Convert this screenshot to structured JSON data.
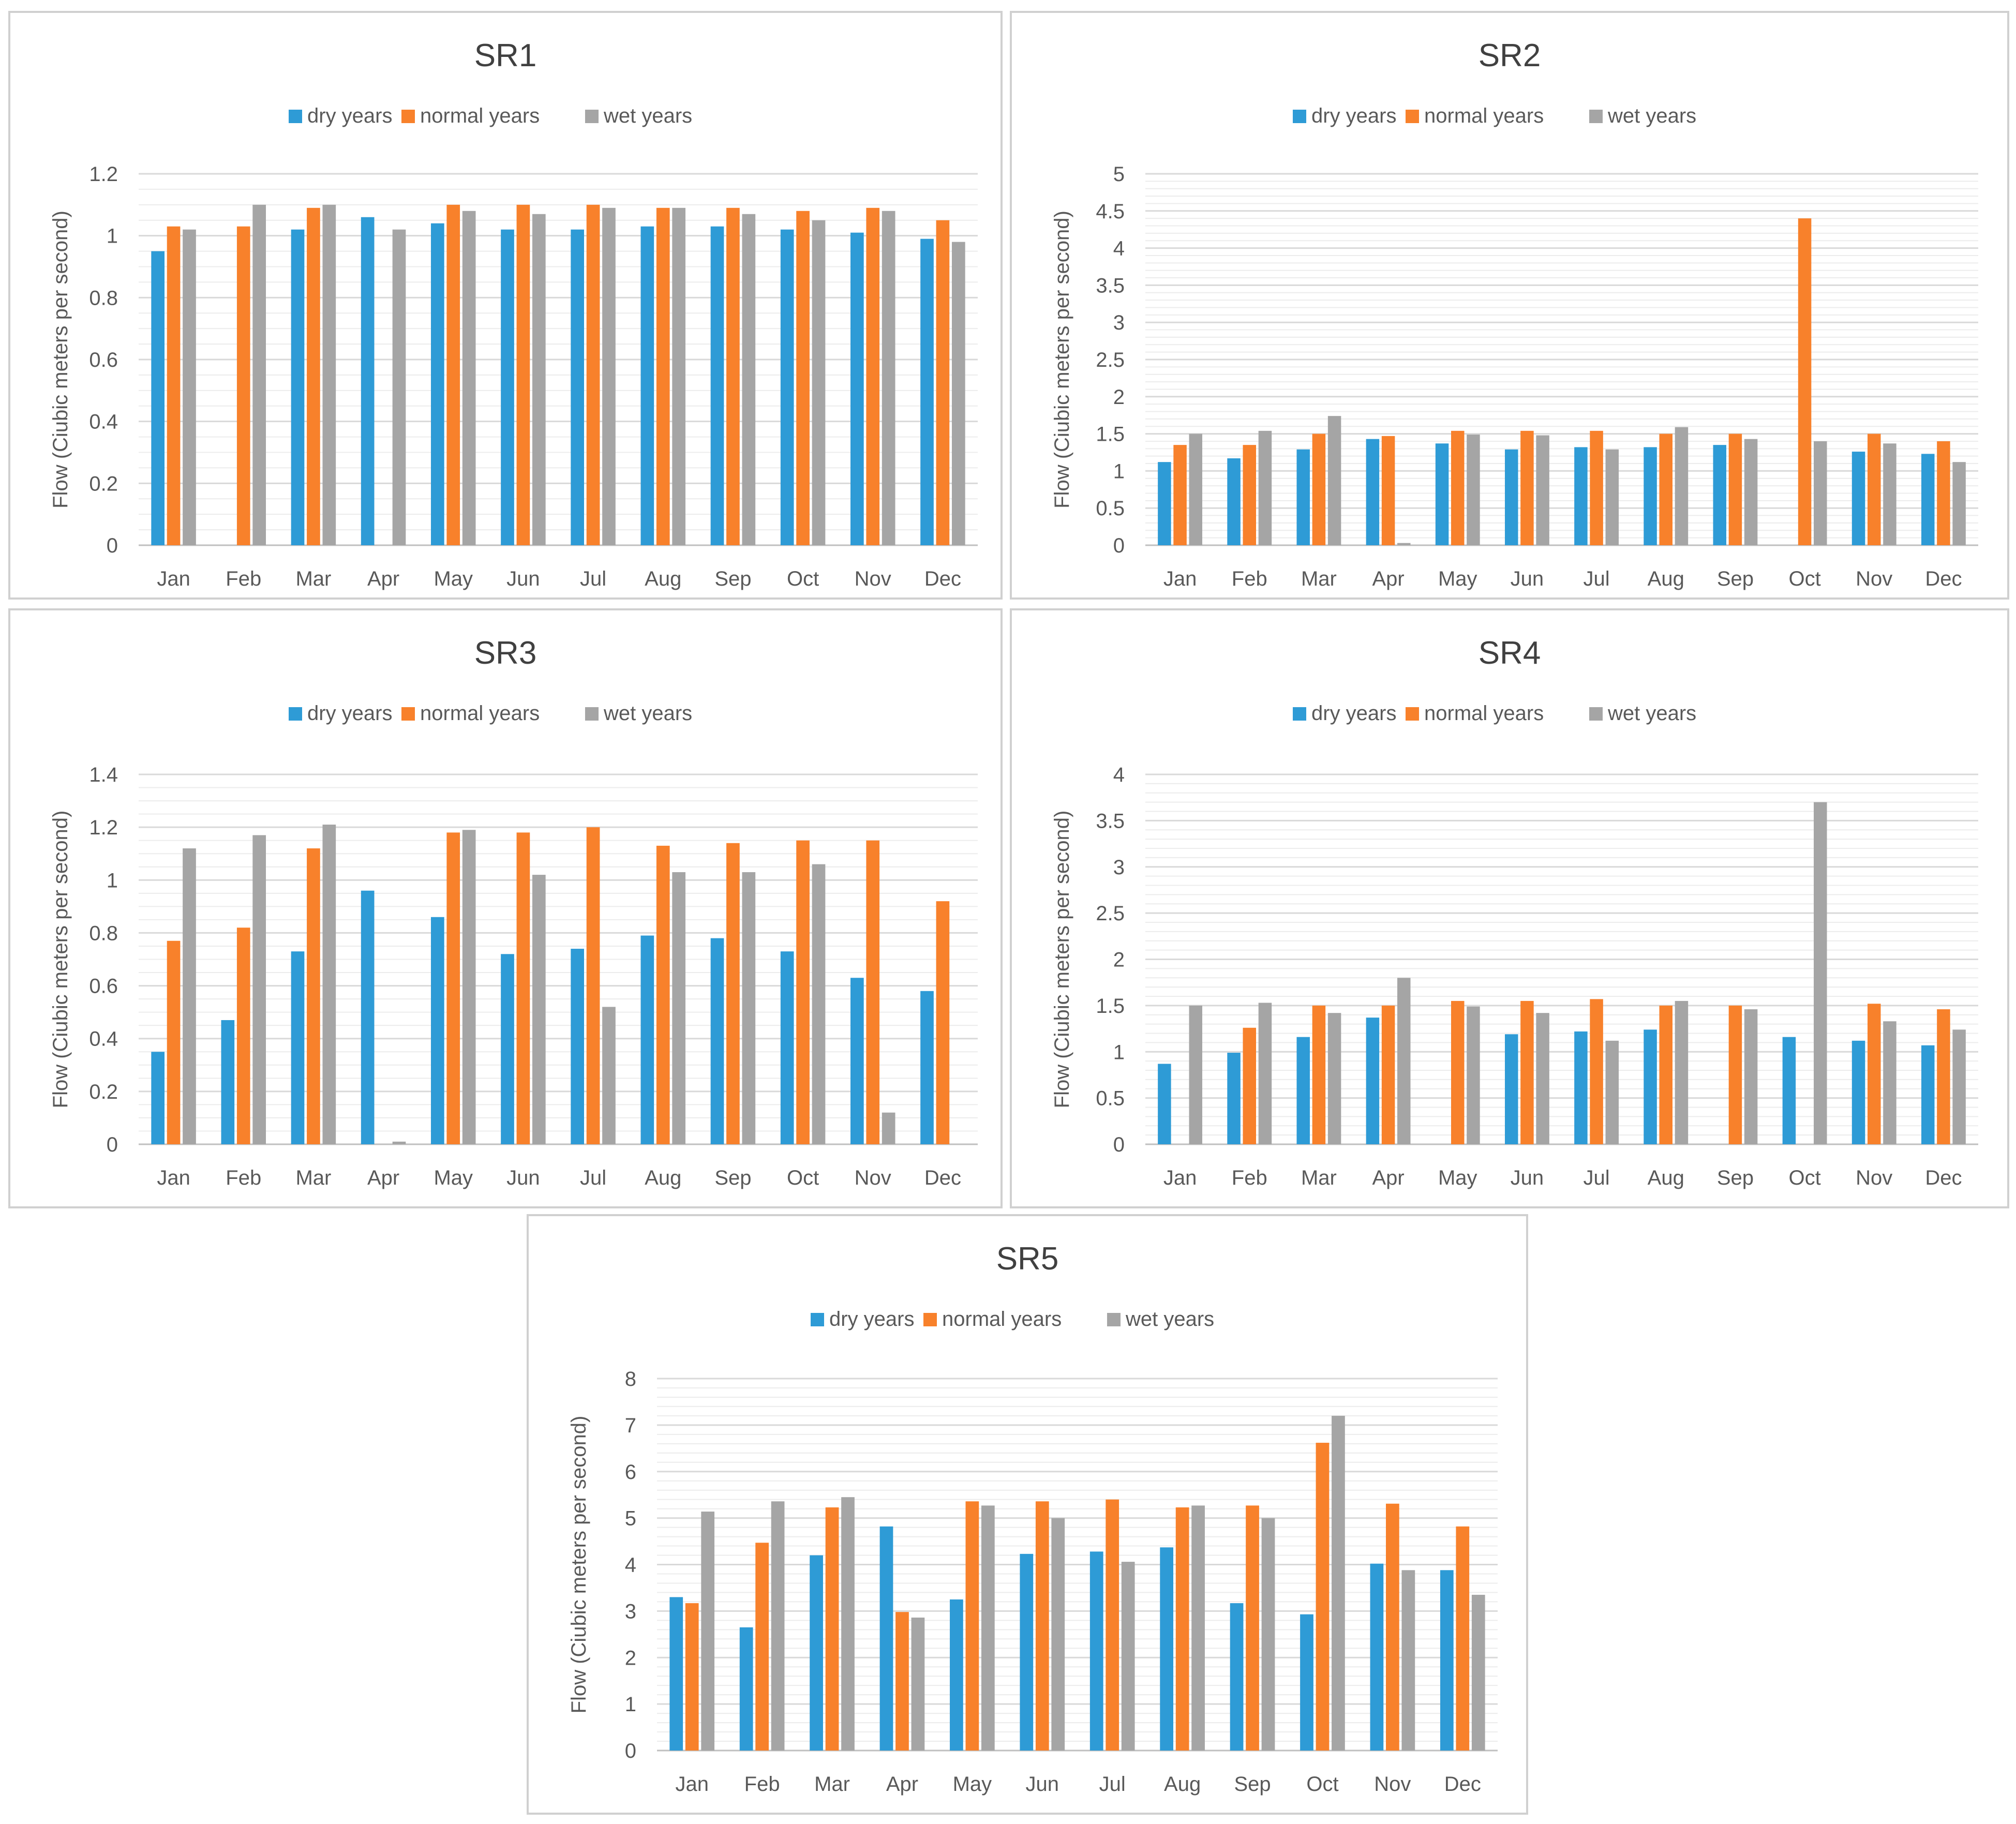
{
  "colors": {
    "dry": "#2e9bd6",
    "normal": "#f8812b",
    "wet": "#a5a5a5"
  },
  "chart_data": [
    {
      "id": "SR1",
      "type": "bar",
      "title": "SR1",
      "ylabel": "Flow (Ciubic meters per second)",
      "xlabel": "",
      "categories": [
        "Jan",
        "Feb",
        "Mar",
        "Apr",
        "May",
        "Jun",
        "Jul",
        "Aug",
        "Sep",
        "Oct",
        "Nov",
        "Dec"
      ],
      "ylim": [
        0,
        1.2
      ],
      "yticks": [
        "0",
        "0.2",
        "0.4",
        "0.6",
        "0.8",
        "1",
        "1.2"
      ],
      "tick_values": [
        0,
        0.2,
        0.4,
        0.6,
        0.8,
        1,
        1.2
      ],
      "minor_step": 0.05,
      "legend": [
        "dry years",
        "normal years",
        "wet years"
      ],
      "series": [
        {
          "name": "dry years",
          "values": [
            0.95,
            0,
            1.02,
            1.06,
            1.04,
            1.02,
            1.02,
            1.03,
            1.03,
            1.02,
            1.01,
            0.99
          ]
        },
        {
          "name": "normal years",
          "values": [
            1.03,
            1.03,
            1.09,
            0,
            1.1,
            1.1,
            1.1,
            1.09,
            1.09,
            1.08,
            1.09,
            1.05
          ]
        },
        {
          "name": "wet years",
          "values": [
            1.02,
            1.1,
            1.1,
            1.02,
            1.08,
            1.07,
            1.09,
            1.09,
            1.07,
            1.05,
            1.08,
            0.98
          ]
        }
      ]
    },
    {
      "id": "SR2",
      "type": "bar",
      "title": "SR2",
      "ylabel": "Flow (Ciubic meters per second)",
      "xlabel": "",
      "categories": [
        "Jan",
        "Feb",
        "Mar",
        "Apr",
        "May",
        "Jun",
        "Jul",
        "Aug",
        "Sep",
        "Oct",
        "Nov",
        "Dec"
      ],
      "ylim": [
        0,
        5
      ],
      "yticks": [
        "0",
        "0.5",
        "1",
        "1.5",
        "2",
        "2.5",
        "3",
        "3.5",
        "4",
        "4.5",
        "5"
      ],
      "tick_values": [
        0,
        0.5,
        1,
        1.5,
        2,
        2.5,
        3,
        3.5,
        4,
        4.5,
        5
      ],
      "minor_step": 0.1,
      "legend": [
        "dry years",
        "normal years",
        "wet years"
      ],
      "series": [
        {
          "name": "dry years",
          "values": [
            1.12,
            1.17,
            1.29,
            1.43,
            1.37,
            1.29,
            1.32,
            1.32,
            1.35,
            0,
            1.26,
            1.23
          ]
        },
        {
          "name": "normal years",
          "values": [
            1.35,
            1.35,
            1.5,
            1.47,
            1.54,
            1.54,
            1.54,
            1.5,
            1.5,
            4.4,
            1.5,
            1.4
          ]
        },
        {
          "name": "wet years",
          "values": [
            1.5,
            1.54,
            1.74,
            0.03,
            1.49,
            1.48,
            1.29,
            1.59,
            1.43,
            1.4,
            1.37,
            1.12
          ]
        }
      ]
    },
    {
      "id": "SR3",
      "type": "bar",
      "title": "SR3",
      "ylabel": "Flow (Ciubic meters per second)",
      "xlabel": "",
      "categories": [
        "Jan",
        "Feb",
        "Mar",
        "Apr",
        "May",
        "Jun",
        "Jul",
        "Aug",
        "Sep",
        "Oct",
        "Nov",
        "Dec"
      ],
      "ylim": [
        0,
        1.4
      ],
      "yticks": [
        "0",
        "0.2",
        "0.4",
        "0.6",
        "0.8",
        "1",
        "1.2",
        "1.4"
      ],
      "tick_values": [
        0,
        0.2,
        0.4,
        0.6,
        0.8,
        1,
        1.2,
        1.4
      ],
      "minor_step": 0.05,
      "legend": [
        "dry years",
        "normal years",
        "wet years"
      ],
      "series": [
        {
          "name": "dry years",
          "values": [
            0.35,
            0.47,
            0.73,
            0.96,
            0.86,
            0.72,
            0.74,
            0.79,
            0.78,
            0.73,
            0.63,
            0.58
          ]
        },
        {
          "name": "normal years",
          "values": [
            0.77,
            0.82,
            1.12,
            0,
            1.18,
            1.18,
            1.2,
            1.13,
            1.14,
            1.15,
            1.15,
            0.92
          ]
        },
        {
          "name": "wet years",
          "values": [
            1.12,
            1.17,
            1.21,
            0.01,
            1.19,
            1.02,
            0.52,
            1.03,
            1.03,
            1.06,
            0.12,
            0
          ]
        }
      ]
    },
    {
      "id": "SR4",
      "type": "bar",
      "title": "SR4",
      "ylabel": "Flow (Ciubic meters per second)",
      "xlabel": "",
      "categories": [
        "Jan",
        "Feb",
        "Mar",
        "Apr",
        "May",
        "Jun",
        "Jul",
        "Aug",
        "Sep",
        "Oct",
        "Nov",
        "Dec"
      ],
      "ylim": [
        0,
        4
      ],
      "yticks": [
        "0",
        "0.5",
        "1",
        "1.5",
        "2",
        "2.5",
        "3",
        "3.5",
        "4"
      ],
      "tick_values": [
        0,
        0.5,
        1,
        1.5,
        2,
        2.5,
        3,
        3.5,
        4
      ],
      "minor_step": 0.1,
      "legend": [
        "dry years",
        "normal years",
        "wet years"
      ],
      "series": [
        {
          "name": "dry years",
          "values": [
            0.87,
            0.99,
            1.16,
            1.37,
            0,
            1.19,
            1.22,
            1.24,
            0,
            1.16,
            1.12,
            1.07
          ]
        },
        {
          "name": "normal years",
          "values": [
            0,
            1.26,
            1.5,
            1.5,
            1.55,
            1.55,
            1.57,
            1.5,
            1.5,
            0,
            1.52,
            1.46
          ]
        },
        {
          "name": "wet years",
          "values": [
            1.5,
            1.53,
            1.42,
            1.8,
            1.49,
            1.42,
            1.12,
            1.55,
            1.46,
            3.7,
            1.33,
            1.24
          ]
        }
      ]
    },
    {
      "id": "SR5",
      "type": "bar",
      "title": "SR5",
      "ylabel": "Flow (Ciubic meters per second)",
      "xlabel": "",
      "categories": [
        "Jan",
        "Feb",
        "Mar",
        "Apr",
        "May",
        "Jun",
        "Jul",
        "Aug",
        "Sep",
        "Oct",
        "Nov",
        "Dec"
      ],
      "ylim": [
        0,
        8
      ],
      "yticks": [
        "0",
        "1",
        "2",
        "3",
        "4",
        "5",
        "6",
        "7",
        "8"
      ],
      "tick_values": [
        0,
        1,
        2,
        3,
        4,
        5,
        6,
        7,
        8
      ],
      "minor_step": 0.2,
      "legend": [
        "dry years",
        "normal years",
        "wet years"
      ],
      "series": [
        {
          "name": "dry years",
          "values": [
            3.3,
            2.65,
            4.2,
            4.82,
            3.25,
            4.23,
            4.28,
            4.37,
            3.17,
            2.93,
            4.02,
            3.88
          ]
        },
        {
          "name": "normal years",
          "values": [
            3.17,
            4.47,
            5.23,
            2.98,
            5.36,
            5.36,
            5.4,
            5.23,
            5.27,
            6.62,
            5.31,
            4.82
          ]
        },
        {
          "name": "wet years",
          "values": [
            5.14,
            5.36,
            5.45,
            2.86,
            5.27,
            5.0,
            4.06,
            5.27,
            5.0,
            7.2,
            3.88,
            3.35
          ]
        }
      ]
    }
  ]
}
